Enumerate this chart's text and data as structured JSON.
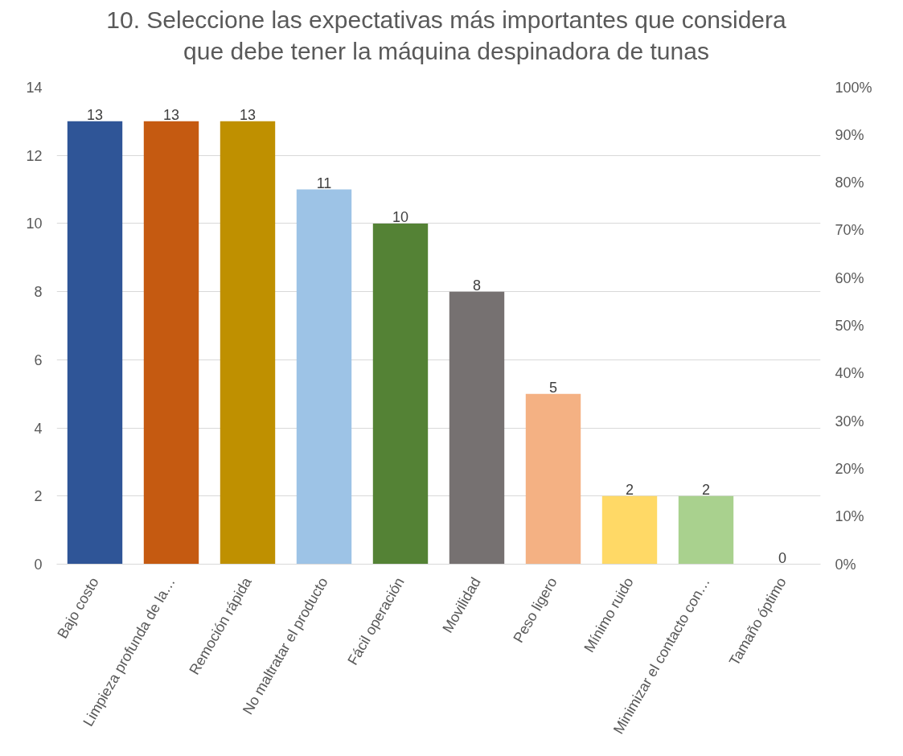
{
  "chart_data": {
    "type": "bar",
    "title": "10. Seleccione las expectativas más importantes que considera\nque debe tener la máquina despinadora de tunas",
    "categories": [
      "Bajo costo",
      "Limpieza profunda de la…",
      "Remoción rápida",
      "No maltratar el producto",
      "Fácil operación",
      "Movilidad",
      "Peso ligero",
      "Mínimo ruido",
      "Minimizar el contacto con…",
      "Tamaño óptimo"
    ],
    "values": [
      13,
      13,
      13,
      11,
      10,
      8,
      5,
      2,
      2,
      0
    ],
    "colors": [
      "#2f5597",
      "#c55a11",
      "#bf9000",
      "#9dc3e6",
      "#548235",
      "#767171",
      "#f4b183",
      "#ffd966",
      "#a9d18e",
      "#8faadc"
    ],
    "ylim": [
      0,
      14
    ],
    "yticks": [
      0,
      2,
      4,
      6,
      8,
      10,
      12,
      14
    ],
    "y2lim": [
      0,
      100
    ],
    "y2ticks": [
      {
        "value": 0,
        "label": "0%"
      },
      {
        "value": 10,
        "label": "10%"
      },
      {
        "value": 20,
        "label": "20%"
      },
      {
        "value": 30,
        "label": "30%"
      },
      {
        "value": 40,
        "label": "40%"
      },
      {
        "value": 50,
        "label": "50%"
      },
      {
        "value": 60,
        "label": "60%"
      },
      {
        "value": 70,
        "label": "70%"
      },
      {
        "value": 80,
        "label": "80%"
      },
      {
        "value": 90,
        "label": "90%"
      },
      {
        "value": 100,
        "label": "100%"
      }
    ],
    "grid": "y",
    "data_labels": true
  }
}
